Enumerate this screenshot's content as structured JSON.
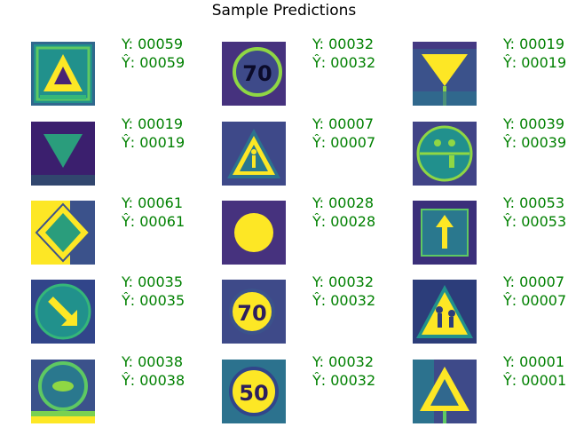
{
  "title": "Sample Predictions",
  "colors": {
    "label": "#008000",
    "bg_dark": "#3b1f6e",
    "mid_teal": "#21918c",
    "bright": "#fde725",
    "green": "#5ec962"
  },
  "samples": [
    {
      "y": "Y: 00059",
      "yhat": "Ŷ: 00059",
      "icon": "warning-triangle-sign-icon"
    },
    {
      "y": "Y: 00032",
      "yhat": "Ŷ: 00032",
      "icon": "speed-70-sign-icon"
    },
    {
      "y": "Y: 00019",
      "yhat": "Ŷ: 00019",
      "icon": "yield-sign-icon"
    },
    {
      "y": "Y: 00019",
      "yhat": "Ŷ: 00019",
      "icon": "yield-sign-icon"
    },
    {
      "y": "Y: 00007",
      "yhat": "Ŷ: 00007",
      "icon": "pedestrian-warning-sign-icon"
    },
    {
      "y": "Y: 00039",
      "yhat": "Ŷ: 00039",
      "icon": "shared-path-sign-icon"
    },
    {
      "y": "Y: 00061",
      "yhat": "Ŷ: 00061",
      "icon": "priority-road-sign-icon"
    },
    {
      "y": "Y: 00028",
      "yhat": "Ŷ: 00028",
      "icon": "round-sign-icon"
    },
    {
      "y": "Y: 00053",
      "yhat": "Ŷ: 00053",
      "icon": "one-way-arrow-sign-icon"
    },
    {
      "y": "Y: 00035",
      "yhat": "Ŷ: 00035",
      "icon": "keep-right-arrow-sign-icon"
    },
    {
      "y": "Y: 00032",
      "yhat": "Ŷ: 00032",
      "icon": "speed-70-sign-icon"
    },
    {
      "y": "Y: 00007",
      "yhat": "Ŷ: 00007",
      "icon": "children-warning-sign-icon"
    },
    {
      "y": "Y: 00038",
      "yhat": "Ŷ: 00038",
      "icon": "no-overtaking-sign-icon"
    },
    {
      "y": "Y: 00032",
      "yhat": "Ŷ: 00032",
      "icon": "speed-50-sign-icon"
    },
    {
      "y": "Y: 00001",
      "yhat": "Ŷ: 00001",
      "icon": "warning-triangle-sign-icon"
    }
  ]
}
